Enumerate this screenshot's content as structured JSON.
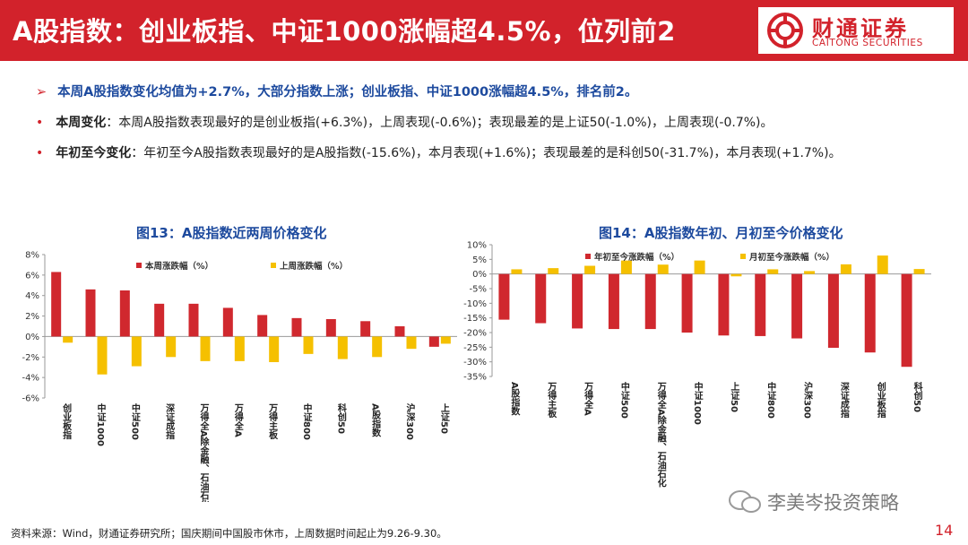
{
  "header": {
    "title": "A股指数：创业板指、中证1000涨幅超4.5%，位列前2",
    "logo_cn": "财通证券",
    "logo_en": "CAITONG SECURITIES"
  },
  "summary": {
    "main": "本周A股指数变化均值为+2.7%，大部分指数上涨；创业板指、中证1000涨幅超4.5%，排名前2。",
    "weekly_label": "本周变化",
    "weekly_text": "：本周A股指数表现最好的是创业板指(+6.3%)，上周表现(-0.6%)；表现最差的是上证50(-1.0%)，上周表现(-0.7%)。",
    "ytd_label": "年初至今变化",
    "ytd_text": "：年初至今A股指数表现最好的是A股指数(-15.6%)，本月表现(+1.6%)；表现最差的是科创50(-31.7%)，本月表现(+1.7%)。"
  },
  "colors": {
    "red": "#d0282e",
    "yellow": "#f5c000",
    "brand": "#d2222b",
    "blue": "#1d4a9e"
  },
  "chart_data": [
    {
      "type": "bar",
      "title": "图13：A股指数近两周价格变化",
      "categories": [
        "创业板指",
        "中证1000",
        "中证500",
        "深证成指",
        "万得全A(除金融、石油石化)",
        "万得全A",
        "万得主板",
        "中证800",
        "科创50",
        "A股指数",
        "沪深300",
        "上证50"
      ],
      "category_labels": [
        "创业板指",
        "中证1000",
        "中证500",
        "深证成指",
        "万得全A除金融、石油石化",
        "万得全A",
        "万得主板",
        "中证800",
        "科创50",
        "A股指数",
        "沪深300",
        "上证50"
      ],
      "series": [
        {
          "name": "本周涨跌幅（%）",
          "values": [
            6.3,
            4.6,
            4.5,
            3.2,
            3.2,
            2.8,
            2.1,
            1.8,
            1.7,
            1.5,
            1.0,
            -1.0
          ]
        },
        {
          "name": "上周涨跌幅（%）",
          "values": [
            -0.6,
            -3.7,
            -2.9,
            -2.0,
            -2.4,
            -2.4,
            -2.5,
            -1.7,
            -2.2,
            -2.0,
            -1.2,
            -0.7
          ]
        }
      ],
      "ylim": [
        -6,
        8
      ],
      "yticks": [
        "8%",
        "6%",
        "4%",
        "2%",
        "0%",
        "-2%",
        "-4%",
        "-6%"
      ],
      "legend": "top",
      "grid": false
    },
    {
      "type": "bar",
      "title": "图14：A股指数年初、月初至今价格变化",
      "categories": [
        "A股指数",
        "万得主板",
        "万得全A",
        "中证500",
        "万得全A(除金融、石油石化)",
        "中证1000",
        "上证50",
        "中证800",
        "沪深300",
        "深证成指",
        "创业板指",
        "科创50"
      ],
      "category_labels": [
        "A股指数",
        "万得主板",
        "万得全A",
        "中证500",
        "万得全A除金融、石油石化",
        "中证1000",
        "上证50",
        "中证800",
        "沪深300",
        "深证成指",
        "创业板指",
        "科创50"
      ],
      "series": [
        {
          "name": "年初至今涨跌幅（%）",
          "values": [
            -15.6,
            -16.8,
            -18.6,
            -18.8,
            -18.8,
            -20.0,
            -21.0,
            -21.2,
            -22.0,
            -25.2,
            -26.8,
            -31.7
          ]
        },
        {
          "name": "月初至今涨跌幅（%）",
          "values": [
            1.6,
            2.0,
            2.8,
            4.6,
            3.2,
            4.6,
            -0.8,
            1.6,
            1.0,
            3.3,
            6.3,
            1.7
          ]
        }
      ],
      "ylim": [
        -35,
        10
      ],
      "yticks": [
        "10%",
        "5%",
        "0%",
        "-5%",
        "-10%",
        "-15%",
        "-20%",
        "-25%",
        "-30%",
        "-35%"
      ],
      "legend": "top",
      "grid": false
    }
  ],
  "footer": {
    "source": "资料来源：Wind，财通证券研究所；国庆期间中国股市休市，上周数据时间起止为9.26-9.30。",
    "watermark": "李美岑投资策略",
    "page_number": "14"
  }
}
